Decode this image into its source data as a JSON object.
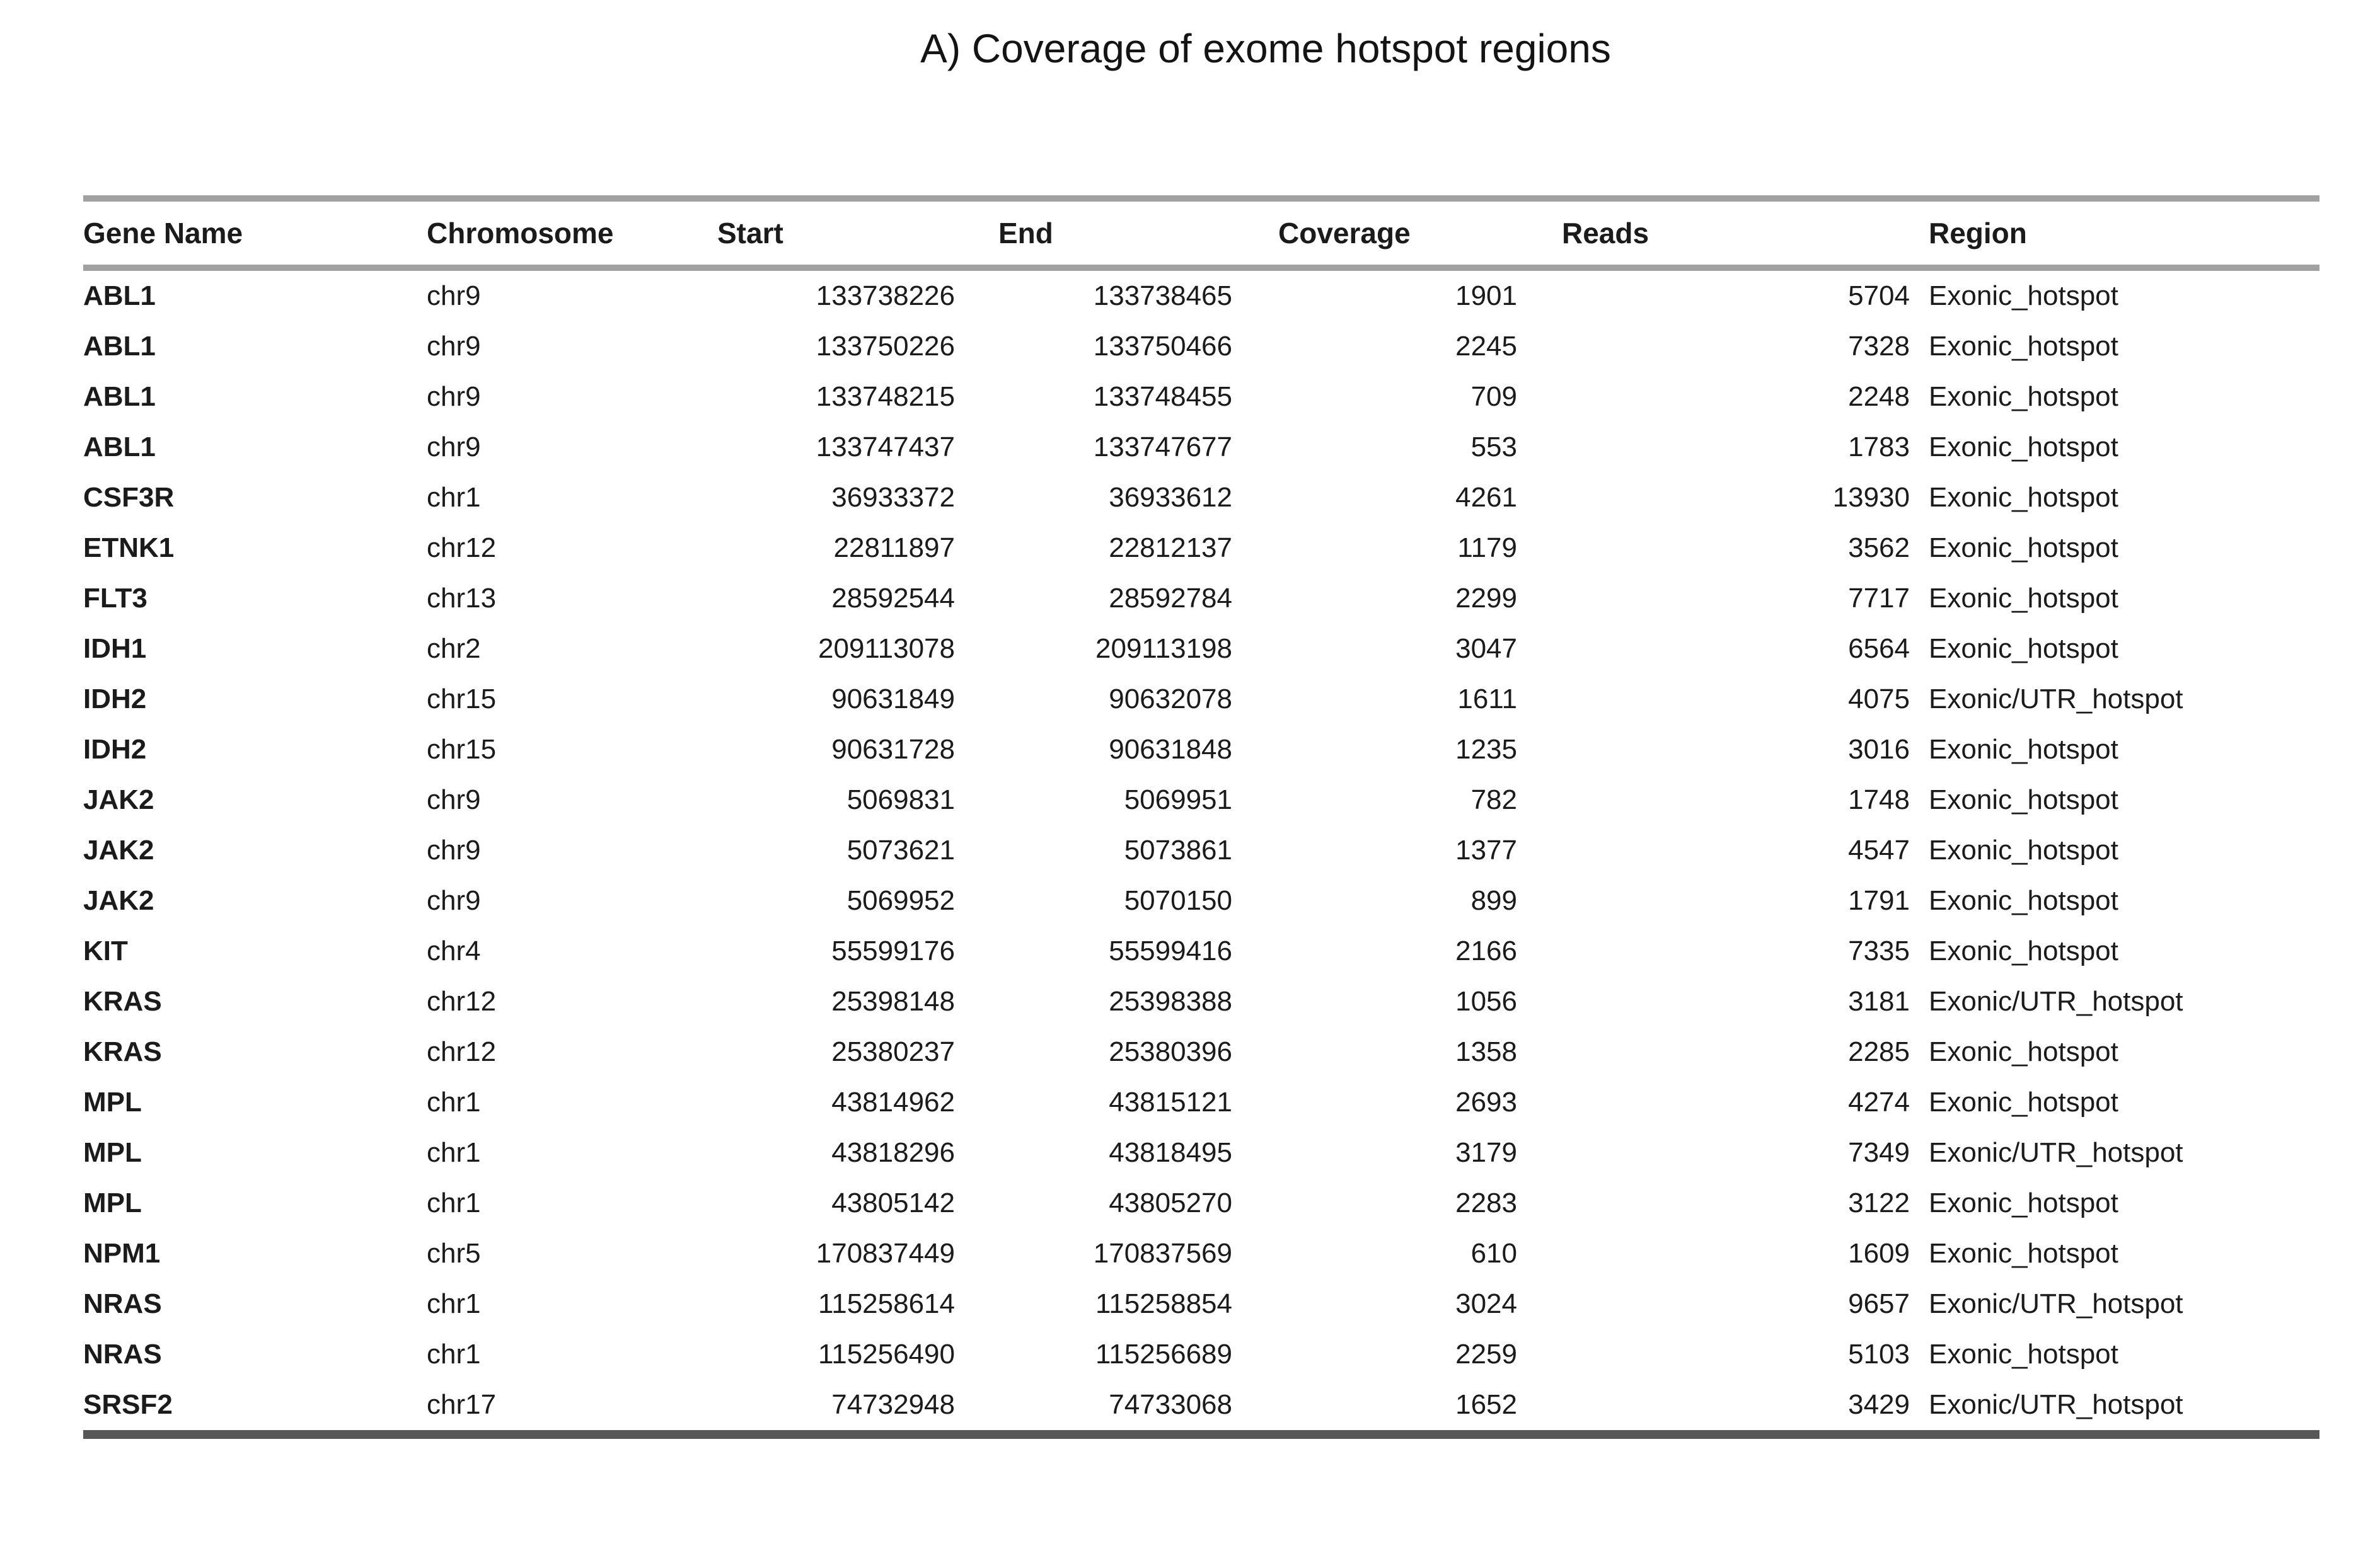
{
  "title": "A) Coverage of exome hotspot regions",
  "colors": {
    "rule_light": "#a1a1a1",
    "rule_dark": "#575757",
    "text": "#1b1b1b"
  },
  "table": {
    "columns": [
      "Gene Name",
      "Chromosome",
      "Start",
      "End",
      "Coverage",
      "Reads",
      "Region"
    ],
    "rows": [
      [
        "ABL1",
        "chr9",
        "133738226",
        "133738465",
        "1901",
        "5704",
        "Exonic_hotspot"
      ],
      [
        "ABL1",
        "chr9",
        "133750226",
        "133750466",
        "2245",
        "7328",
        "Exonic_hotspot"
      ],
      [
        "ABL1",
        "chr9",
        "133748215",
        "133748455",
        "709",
        "2248",
        "Exonic_hotspot"
      ],
      [
        "ABL1",
        "chr9",
        "133747437",
        "133747677",
        "553",
        "1783",
        "Exonic_hotspot"
      ],
      [
        "CSF3R",
        "chr1",
        "36933372",
        "36933612",
        "4261",
        "13930",
        "Exonic_hotspot"
      ],
      [
        "ETNK1",
        "chr12",
        "22811897",
        "22812137",
        "1179",
        "3562",
        "Exonic_hotspot"
      ],
      [
        "FLT3",
        "chr13",
        "28592544",
        "28592784",
        "2299",
        "7717",
        "Exonic_hotspot"
      ],
      [
        "IDH1",
        "chr2",
        "209113078",
        "209113198",
        "3047",
        "6564",
        "Exonic_hotspot"
      ],
      [
        "IDH2",
        "chr15",
        "90631849",
        "90632078",
        "1611",
        "4075",
        "Exonic/UTR_hotspot"
      ],
      [
        "IDH2",
        "chr15",
        "90631728",
        "90631848",
        "1235",
        "3016",
        "Exonic_hotspot"
      ],
      [
        "JAK2",
        "chr9",
        "5069831",
        "5069951",
        "782",
        "1748",
        "Exonic_hotspot"
      ],
      [
        "JAK2",
        "chr9",
        "5073621",
        "5073861",
        "1377",
        "4547",
        "Exonic_hotspot"
      ],
      [
        "JAK2",
        "chr9",
        "5069952",
        "5070150",
        "899",
        "1791",
        "Exonic_hotspot"
      ],
      [
        "KIT",
        "chr4",
        "55599176",
        "55599416",
        "2166",
        "7335",
        "Exonic_hotspot"
      ],
      [
        "KRAS",
        "chr12",
        "25398148",
        "25398388",
        "1056",
        "3181",
        "Exonic/UTR_hotspot"
      ],
      [
        "KRAS",
        "chr12",
        "25380237",
        "25380396",
        "1358",
        "2285",
        "Exonic_hotspot"
      ],
      [
        "MPL",
        "chr1",
        "43814962",
        "43815121",
        "2693",
        "4274",
        "Exonic_hotspot"
      ],
      [
        "MPL",
        "chr1",
        "43818296",
        "43818495",
        "3179",
        "7349",
        "Exonic/UTR_hotspot"
      ],
      [
        "MPL",
        "chr1",
        "43805142",
        "43805270",
        "2283",
        "3122",
        "Exonic_hotspot"
      ],
      [
        "NPM1",
        "chr5",
        "170837449",
        "170837569",
        "610",
        "1609",
        "Exonic_hotspot"
      ],
      [
        "NRAS",
        "chr1",
        "115258614",
        "115258854",
        "3024",
        "9657",
        "Exonic/UTR_hotspot"
      ],
      [
        "NRAS",
        "chr1",
        "115256490",
        "115256689",
        "2259",
        "5103",
        "Exonic_hotspot"
      ],
      [
        "SRSF2",
        "chr17",
        "74732948",
        "74733068",
        "1652",
        "3429",
        "Exonic/UTR_hotspot"
      ]
    ]
  }
}
